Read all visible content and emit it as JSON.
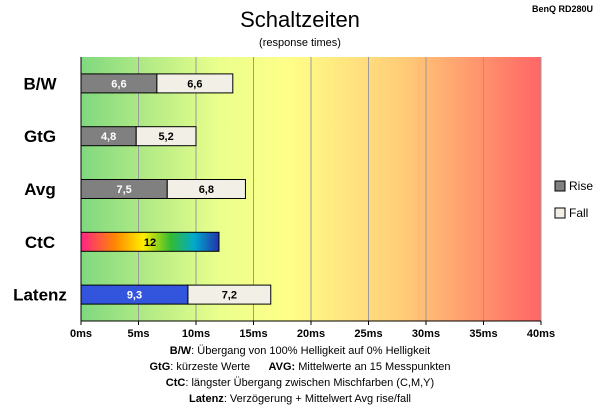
{
  "model_label": "BenQ RD280U",
  "chart_data": {
    "type": "bar",
    "title": "Schaltzeiten",
    "subtitle": "(response times)",
    "categories": [
      "B/W",
      "GtG",
      "Avg",
      "CtC",
      "Latenz"
    ],
    "series": [
      {
        "name": "Rise",
        "values": [
          6.6,
          4.8,
          7.5,
          12,
          9.3
        ],
        "labels": [
          "6,6",
          "4,8",
          "7,5",
          "12",
          "9,3"
        ]
      },
      {
        "name": "Fall",
        "values": [
          6.6,
          5.2,
          6.8,
          null,
          7.2
        ],
        "labels": [
          "6,6",
          "5,2",
          "6,8",
          "",
          "7,2"
        ]
      }
    ],
    "stacked": true,
    "xlim": [
      0,
      40
    ],
    "xticks": [
      0,
      5,
      10,
      15,
      20,
      25,
      30,
      35,
      40
    ],
    "tick_labels": [
      "0ms",
      "5ms",
      "10ms",
      "15ms",
      "20ms",
      "25ms",
      "30ms",
      "35ms",
      "40ms"
    ],
    "grid": true,
    "legend_position": "right",
    "colors": {
      "rise": "#808080",
      "fall": "#f2f0e6",
      "latency": "#3355dd",
      "background_gradient": [
        "#7fd87f",
        "#ffff88",
        "#ff6666"
      ]
    }
  },
  "footnotes": [
    {
      "key": "B/W",
      "text": ":  Übergang von 100% Helligkeit auf 0% Helligkeit"
    },
    {
      "key": "GtG",
      "text": ": kürzeste  Werte",
      "key2": "AVG:",
      "text2": " Mittelwerte  an 15 Messpunkten"
    },
    {
      "key": "CtC",
      "text": ": längster Übergang  zwischen Mischfarben (C,M,Y)"
    },
    {
      "key": "Latenz",
      "text": ": Verzögerung  + Mittelwert Avg rise/fall"
    }
  ]
}
